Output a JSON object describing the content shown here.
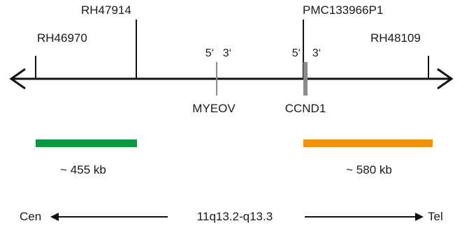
{
  "markers": {
    "rh46970": "RH46970",
    "rh47914": "RH47914",
    "pmc133966p1": "PMC133966P1",
    "rh48109": "RH48109"
  },
  "genes": {
    "myeov": {
      "label": "MYEOV",
      "five_prime": "5‘",
      "three_prime": "3‘"
    },
    "ccnd1": {
      "label": "CCND1",
      "five_prime": "5‘",
      "three_prime": "3‘"
    }
  },
  "probes": {
    "centromeric": {
      "label": "~ 455 kb",
      "color": "#0a9a44"
    },
    "telomeric": {
      "label": "~ 580 kb",
      "color": "#f0900c"
    }
  },
  "orientation": {
    "left": "Cen",
    "center": "11q13.2-q13.3",
    "right": "Tel"
  },
  "colors": {
    "line": "#111111",
    "gene_mark": "#8c8c8c"
  }
}
